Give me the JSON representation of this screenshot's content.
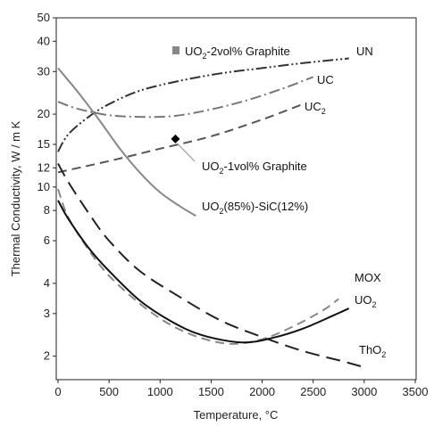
{
  "chart_data": {
    "type": "line",
    "xlabel": "Temperature, °C",
    "ylabel": "Thermal Conductivity, W / m K",
    "xlim": [
      0,
      3500
    ],
    "ylim": [
      1.6,
      50
    ],
    "y_scale": "log",
    "xticks": [
      0,
      500,
      1000,
      1500,
      2000,
      2500,
      3000,
      3500
    ],
    "yticks": [
      2,
      3,
      4,
      6,
      8,
      10,
      12,
      15,
      20,
      30,
      40,
      50
    ],
    "grid": false,
    "series": [
      {
        "name": "UN",
        "color": "#333333",
        "style": "dash-dot-dot",
        "x": [
          0,
          100,
          300,
          500,
          800,
          1200,
          1600,
          2000,
          2400,
          2850
        ],
        "y": [
          14,
          16.5,
          19.5,
          22,
          25,
          27.5,
          29.5,
          31,
          32.5,
          34
        ]
      },
      {
        "name": "UC",
        "color": "#777777",
        "style": "dash-dot",
        "x": [
          0,
          200,
          500,
          800,
          1100,
          1400,
          1800,
          2200,
          2500
        ],
        "y": [
          22.5,
          21,
          19.8,
          19.5,
          19.6,
          20.5,
          22.5,
          25.5,
          28.5
        ]
      },
      {
        "name": "UC2",
        "color": "#555555",
        "style": "dashed",
        "x": [
          0,
          500,
          1000,
          1500,
          2000,
          2400
        ],
        "y": [
          11.5,
          12.8,
          14.4,
          16.2,
          19,
          22
        ]
      },
      {
        "name": "UO2(85%)-SiC(12%)",
        "color": "#888888",
        "style": "solid",
        "x": [
          0,
          200,
          400,
          600,
          800,
          1000,
          1200,
          1350
        ],
        "y": [
          31,
          24.5,
          19,
          14.5,
          11.5,
          9.5,
          8.3,
          7.6
        ]
      },
      {
        "name": "ThO2",
        "color": "#222222",
        "style": "long-dash",
        "x": [
          0,
          100,
          300,
          500,
          800,
          1200,
          1600,
          2000,
          2400,
          2800,
          3000
        ],
        "y": [
          12.5,
          10.5,
          7.8,
          6.0,
          4.5,
          3.5,
          2.8,
          2.4,
          2.1,
          1.9,
          1.8
        ]
      },
      {
        "name": "MOX",
        "color": "#888888",
        "style": "dashed",
        "x": [
          0,
          100,
          300,
          500,
          800,
          1100,
          1400,
          1700,
          2000,
          2300,
          2600,
          2750
        ],
        "y": [
          9.8,
          7.5,
          5.5,
          4.3,
          3.3,
          2.7,
          2.38,
          2.25,
          2.35,
          2.65,
          3.1,
          3.45
        ]
      },
      {
        "name": "UO2",
        "color": "#111111",
        "style": "solid",
        "x": [
          0,
          100,
          300,
          500,
          800,
          1100,
          1400,
          1800,
          2100,
          2400,
          2700,
          2850
        ],
        "y": [
          8.8,
          7.4,
          5.6,
          4.5,
          3.4,
          2.8,
          2.45,
          2.28,
          2.38,
          2.6,
          2.95,
          3.15
        ]
      }
    ],
    "points": [
      {
        "name": "UO2-1vol% Graphite",
        "marker": "diamond",
        "color": "#000000",
        "x": 1150,
        "y": 15.8
      },
      {
        "name": "UO2-2vol% Graphite",
        "marker": "square",
        "color": "#888888"
      }
    ],
    "annotations": {
      "UN": {
        "main": "UN",
        "sub": "",
        "tail": ""
      },
      "UC": {
        "main": "UC",
        "sub": "",
        "tail": ""
      },
      "UC2": {
        "main": "UC",
        "sub": "2",
        "tail": ""
      },
      "SiC": {
        "main": "UO",
        "sub": "2",
        "tail": "(85%)-SiC(12%)"
      },
      "MOX": {
        "main": "MOX",
        "sub": "",
        "tail": ""
      },
      "UO2": {
        "main": "UO",
        "sub": "2",
        "tail": ""
      },
      "ThO2": {
        "main": "ThO",
        "sub": "2",
        "tail": ""
      },
      "G1": {
        "main": "UO",
        "sub": "2",
        "tail": "-1vol% Graphite"
      },
      "G2": {
        "main": "UO",
        "sub": "2",
        "tail": "-2vol% Graphite"
      }
    }
  }
}
